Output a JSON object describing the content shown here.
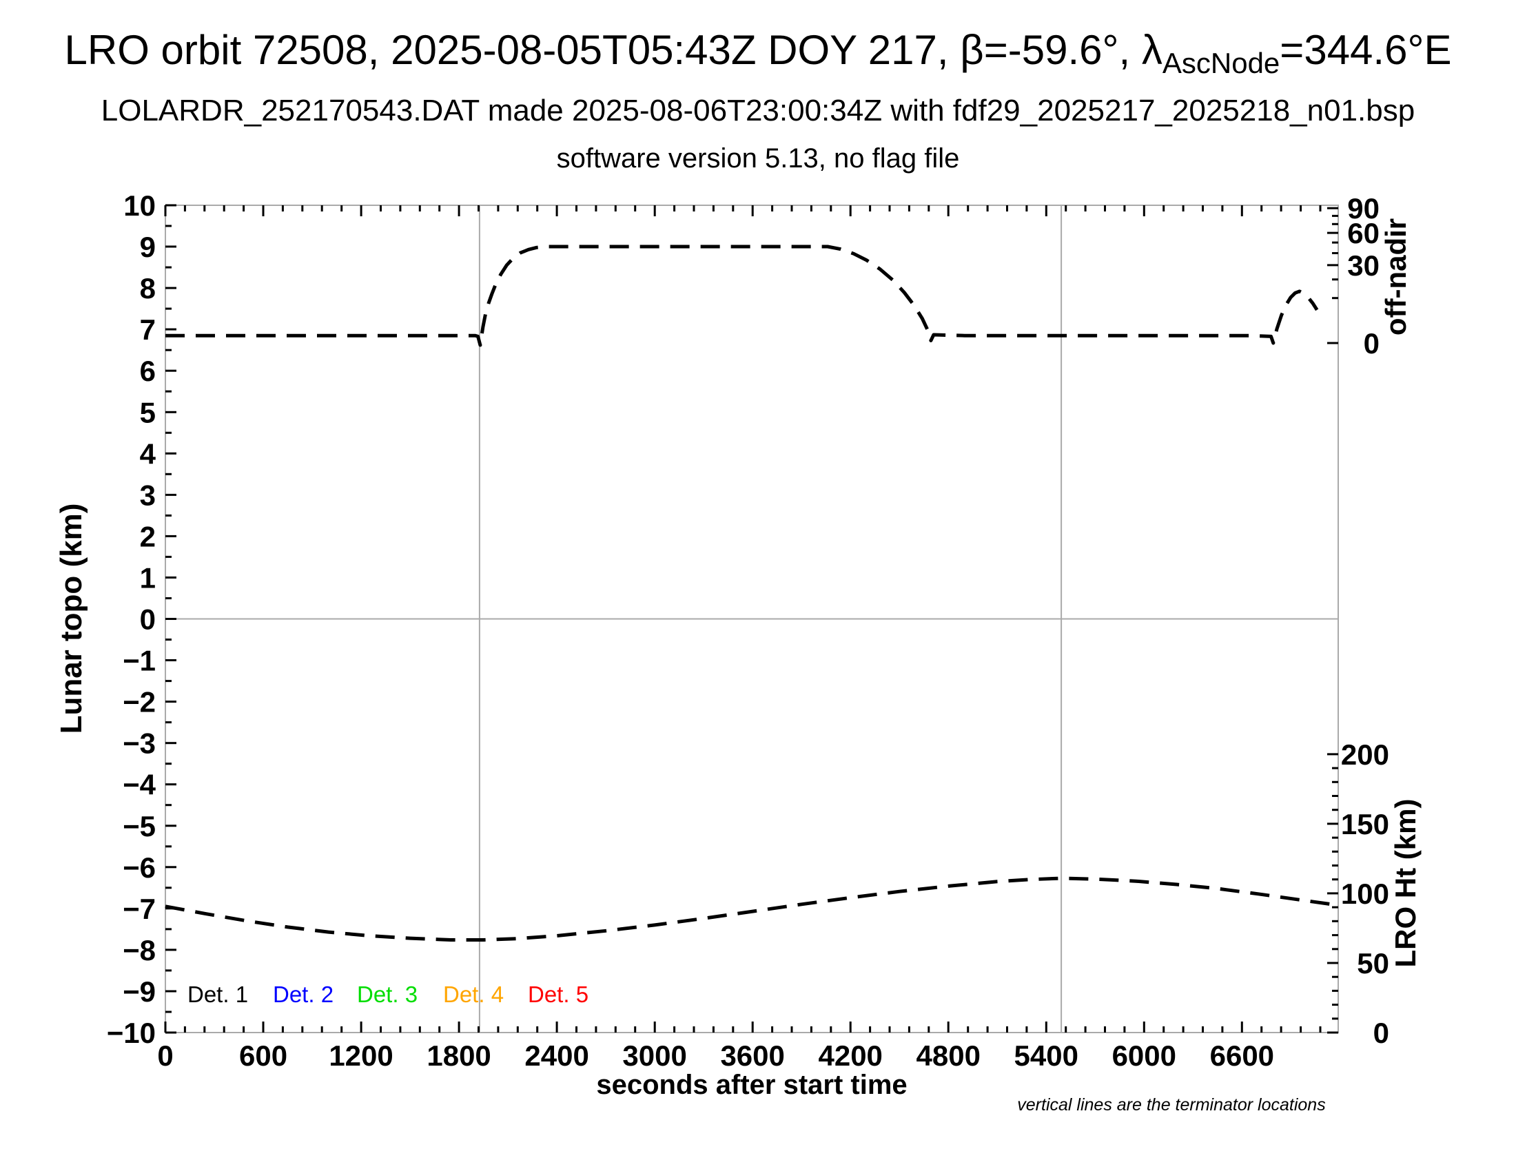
{
  "header": {
    "title_prefix": "LRO orbit 72508, 2025-08-05T05:43Z DOY 217, β=-59.6°, λ",
    "title_subscript": "AscNode",
    "title_suffix": "=344.6°E",
    "subtitle_file": "LOLARDR_252170543.DAT made 2025-08-06T23:00:34Z with fdf29_2025217_2025218_n01.bsp",
    "subtitle_version": "software version 5.13, no flag file"
  },
  "chart_data": {
    "type": "line",
    "title": "LRO orbit 72508, 2025-08-05T05:43Z DOY 217, β=-59.6°, λAscNode=344.6°E",
    "xlabel": "seconds after start time",
    "ylabel_left": "Lunar topo (km)",
    "ylabel_right_top": "off-nadir",
    "ylabel_right_bottom": "LRO Ht (km)",
    "footnote": "vertical lines are the terminator locations",
    "grid": {
      "horizontal_zero_line": true,
      "vertical_terminator_lines": true
    },
    "frame_color": "#aaaaaa",
    "curve_color": "#000000",
    "x_range": [
      0,
      7190
    ],
    "x_minor_tick_step": 120,
    "x_major_tick_step": 600,
    "x_tick_values": [
      0,
      600,
      1200,
      1800,
      2400,
      3000,
      3600,
      4200,
      4800,
      5400,
      6000,
      6600
    ],
    "x_tick_labels": [
      "0",
      "600",
      "1200",
      "1800",
      "2400",
      "3000",
      "3600",
      "4200",
      "4800",
      "5400",
      "6000",
      "6600"
    ],
    "y_left_range": [
      -10,
      10
    ],
    "y_left_minor_step": 0.5,
    "y_left_tick_values": [
      10,
      9,
      8,
      7,
      6,
      5,
      4,
      3,
      2,
      1,
      0,
      -1,
      -2,
      -3,
      -4,
      -5,
      -6,
      -7,
      -8,
      -9,
      -10
    ],
    "y_left_tick_labels": [
      "10",
      "9",
      "8",
      "7",
      "6",
      "5",
      "4",
      "3",
      "2",
      "1",
      "0",
      "−1",
      "−2",
      "−3",
      "−4",
      "−5",
      "−6",
      "−7",
      "−8",
      "−9",
      "−10"
    ],
    "right_top_axis": {
      "label": "off-nadir",
      "scale": "sqrt",
      "tick_values_deg": [
        0,
        10,
        20,
        30,
        40,
        50,
        60,
        70,
        80,
        90
      ],
      "major_tick_values_deg": [
        0,
        30,
        60,
        90
      ],
      "labeled_values_deg": [
        90,
        60,
        30,
        0
      ],
      "labels": [
        "90",
        "60",
        "30",
        "0"
      ],
      "topo_at_0deg": 6.67,
      "topo_at_90deg": 9.93
    },
    "right_bottom_axis": {
      "label": "LRO Ht (km)",
      "range_km": [
        0,
        200
      ],
      "tick_step_km": 10,
      "major_step_km": 50,
      "labeled_values_km": [
        200,
        150,
        100,
        50,
        0
      ],
      "labels": [
        "200",
        "150",
        "100",
        "50",
        "0"
      ],
      "topo_at_0km": -10,
      "topo_at_200km": -3.27
    },
    "terminator_lines_seconds": [
      1926,
      5492
    ],
    "zero_line_topo": 0,
    "series": [
      {
        "name": "spacecraft off-nadir angle",
        "axis": "right-top",
        "color": "#000000",
        "line_style": "dashed",
        "approx_values_deg": {
          "baseline": 0.5,
          "slew_plateau": 46,
          "end_bump_peak": 13
        },
        "points_t_topo": [
          [
            0,
            6.85
          ],
          [
            300,
            6.85
          ],
          [
            600,
            6.85
          ],
          [
            900,
            6.85
          ],
          [
            1200,
            6.85
          ],
          [
            1500,
            6.85
          ],
          [
            1750,
            6.85
          ],
          [
            1900,
            6.85
          ],
          [
            1916,
            6.83
          ],
          [
            1930,
            6.62
          ],
          [
            1947,
            7.06
          ],
          [
            1964,
            7.4
          ],
          [
            1982,
            7.64
          ],
          [
            2002,
            7.86
          ],
          [
            2026,
            8.1
          ],
          [
            2056,
            8.33
          ],
          [
            2092,
            8.55
          ],
          [
            2132,
            8.72
          ],
          [
            2176,
            8.85
          ],
          [
            2226,
            8.93
          ],
          [
            2276,
            8.98
          ],
          [
            2330,
            9.0
          ],
          [
            2620,
            9.0
          ],
          [
            2920,
            9.0
          ],
          [
            3220,
            9.0
          ],
          [
            3520,
            9.0
          ],
          [
            3820,
            9.0
          ],
          [
            4060,
            9.0
          ],
          [
            4140,
            8.94
          ],
          [
            4220,
            8.83
          ],
          [
            4300,
            8.67
          ],
          [
            4380,
            8.46
          ],
          [
            4460,
            8.19
          ],
          [
            4530,
            7.89
          ],
          [
            4590,
            7.58
          ],
          [
            4640,
            7.26
          ],
          [
            4676,
            6.96
          ],
          [
            4693,
            6.73
          ],
          [
            4710,
            6.87
          ],
          [
            4900,
            6.85
          ],
          [
            5200,
            6.85
          ],
          [
            5500,
            6.85
          ],
          [
            5800,
            6.85
          ],
          [
            6100,
            6.85
          ],
          [
            6400,
            6.85
          ],
          [
            6660,
            6.85
          ],
          [
            6778,
            6.83
          ],
          [
            6792,
            6.67
          ],
          [
            6814,
            7.01
          ],
          [
            6842,
            7.34
          ],
          [
            6870,
            7.59
          ],
          [
            6898,
            7.77
          ],
          [
            6926,
            7.88
          ],
          [
            6952,
            7.92
          ],
          [
            6978,
            7.87
          ],
          [
            7006,
            7.77
          ],
          [
            7034,
            7.63
          ],
          [
            7060,
            7.47
          ]
        ]
      },
      {
        "name": "LRO height above surface",
        "axis": "right-bottom",
        "color": "#000000",
        "line_style": "dashed",
        "approx_values_km": {
          "start": 90,
          "min": 67,
          "max": 111,
          "end": 91
        },
        "points_t_topo": [
          [
            0,
            -6.95
          ],
          [
            250,
            -7.13
          ],
          [
            500,
            -7.3
          ],
          [
            750,
            -7.45
          ],
          [
            1000,
            -7.57
          ],
          [
            1250,
            -7.66
          ],
          [
            1500,
            -7.72
          ],
          [
            1750,
            -7.76
          ],
          [
            1950,
            -7.76
          ],
          [
            2150,
            -7.73
          ],
          [
            2400,
            -7.66
          ],
          [
            2700,
            -7.54
          ],
          [
            3000,
            -7.4
          ],
          [
            3300,
            -7.24
          ],
          [
            3600,
            -7.07
          ],
          [
            3900,
            -6.9
          ],
          [
            4200,
            -6.74
          ],
          [
            4500,
            -6.59
          ],
          [
            4800,
            -6.46
          ],
          [
            5100,
            -6.35
          ],
          [
            5300,
            -6.3
          ],
          [
            5500,
            -6.27
          ],
          [
            5700,
            -6.29
          ],
          [
            5950,
            -6.34
          ],
          [
            6200,
            -6.42
          ],
          [
            6450,
            -6.52
          ],
          [
            6700,
            -6.65
          ],
          [
            6950,
            -6.79
          ],
          [
            7150,
            -6.9
          ],
          [
            7190,
            -6.92
          ]
        ]
      }
    ],
    "legend": [
      {
        "label": "Det. 1",
        "color": "#000000"
      },
      {
        "label": "Det. 2",
        "color": "#0000ff"
      },
      {
        "label": "Det. 3",
        "color": "#00dd00"
      },
      {
        "label": "Det. 4",
        "color": "#ffa500"
      },
      {
        "label": "Det. 5",
        "color": "#ff0000"
      }
    ]
  }
}
